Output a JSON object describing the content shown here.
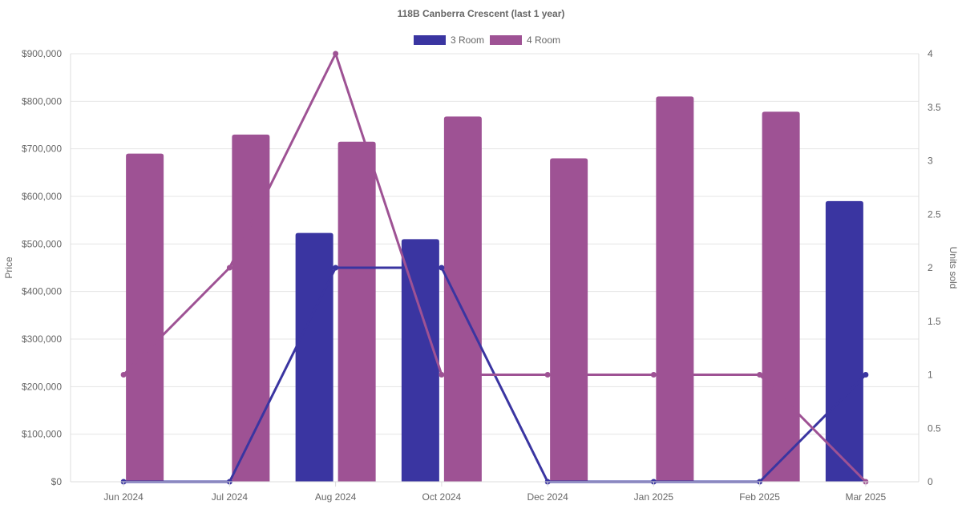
{
  "chart_data": {
    "type": "bar",
    "title": "118B Canberra Crescent (last 1 year)",
    "categories": [
      "Jun 2024",
      "Jul 2024",
      "Aug 2024",
      "Oct 2024",
      "Dec 2024",
      "Jan 2025",
      "Feb 2025",
      "Mar 2025"
    ],
    "legend_position": "top-center",
    "grid": true,
    "y_left": {
      "label": "Price",
      "lim": [
        0,
        900000
      ],
      "ticks": [
        0,
        100000,
        200000,
        300000,
        400000,
        500000,
        600000,
        700000,
        800000,
        900000
      ],
      "tick_labels": [
        "$0",
        "$100,000",
        "$200,000",
        "$300,000",
        "$400,000",
        "$500,000",
        "$600,000",
        "$700,000",
        "$800,000",
        "$900,000"
      ]
    },
    "y_right": {
      "label": "Units sold",
      "lim": [
        0,
        4
      ],
      "ticks": [
        0,
        0.5,
        1,
        1.5,
        2,
        2.5,
        3,
        3.5,
        4
      ],
      "tick_labels": [
        "0",
        "0.5",
        "1",
        "1.5",
        "2",
        "2.5",
        "3",
        "3.5",
        "4"
      ]
    },
    "series": [
      {
        "name": "3 Room",
        "color": "#3a35a1",
        "price": [
          null,
          null,
          523000,
          510000,
          null,
          null,
          null,
          590000
        ],
        "units_sold": [
          0,
          0,
          2,
          2,
          0,
          0,
          0,
          1
        ]
      },
      {
        "name": "4 Room",
        "color": "#9e5294",
        "price": [
          690000,
          730000,
          715000,
          768000,
          680000,
          810000,
          778000,
          null
        ],
        "units_sold": [
          1,
          2,
          4,
          1,
          1,
          1,
          1,
          0
        ]
      }
    ]
  }
}
